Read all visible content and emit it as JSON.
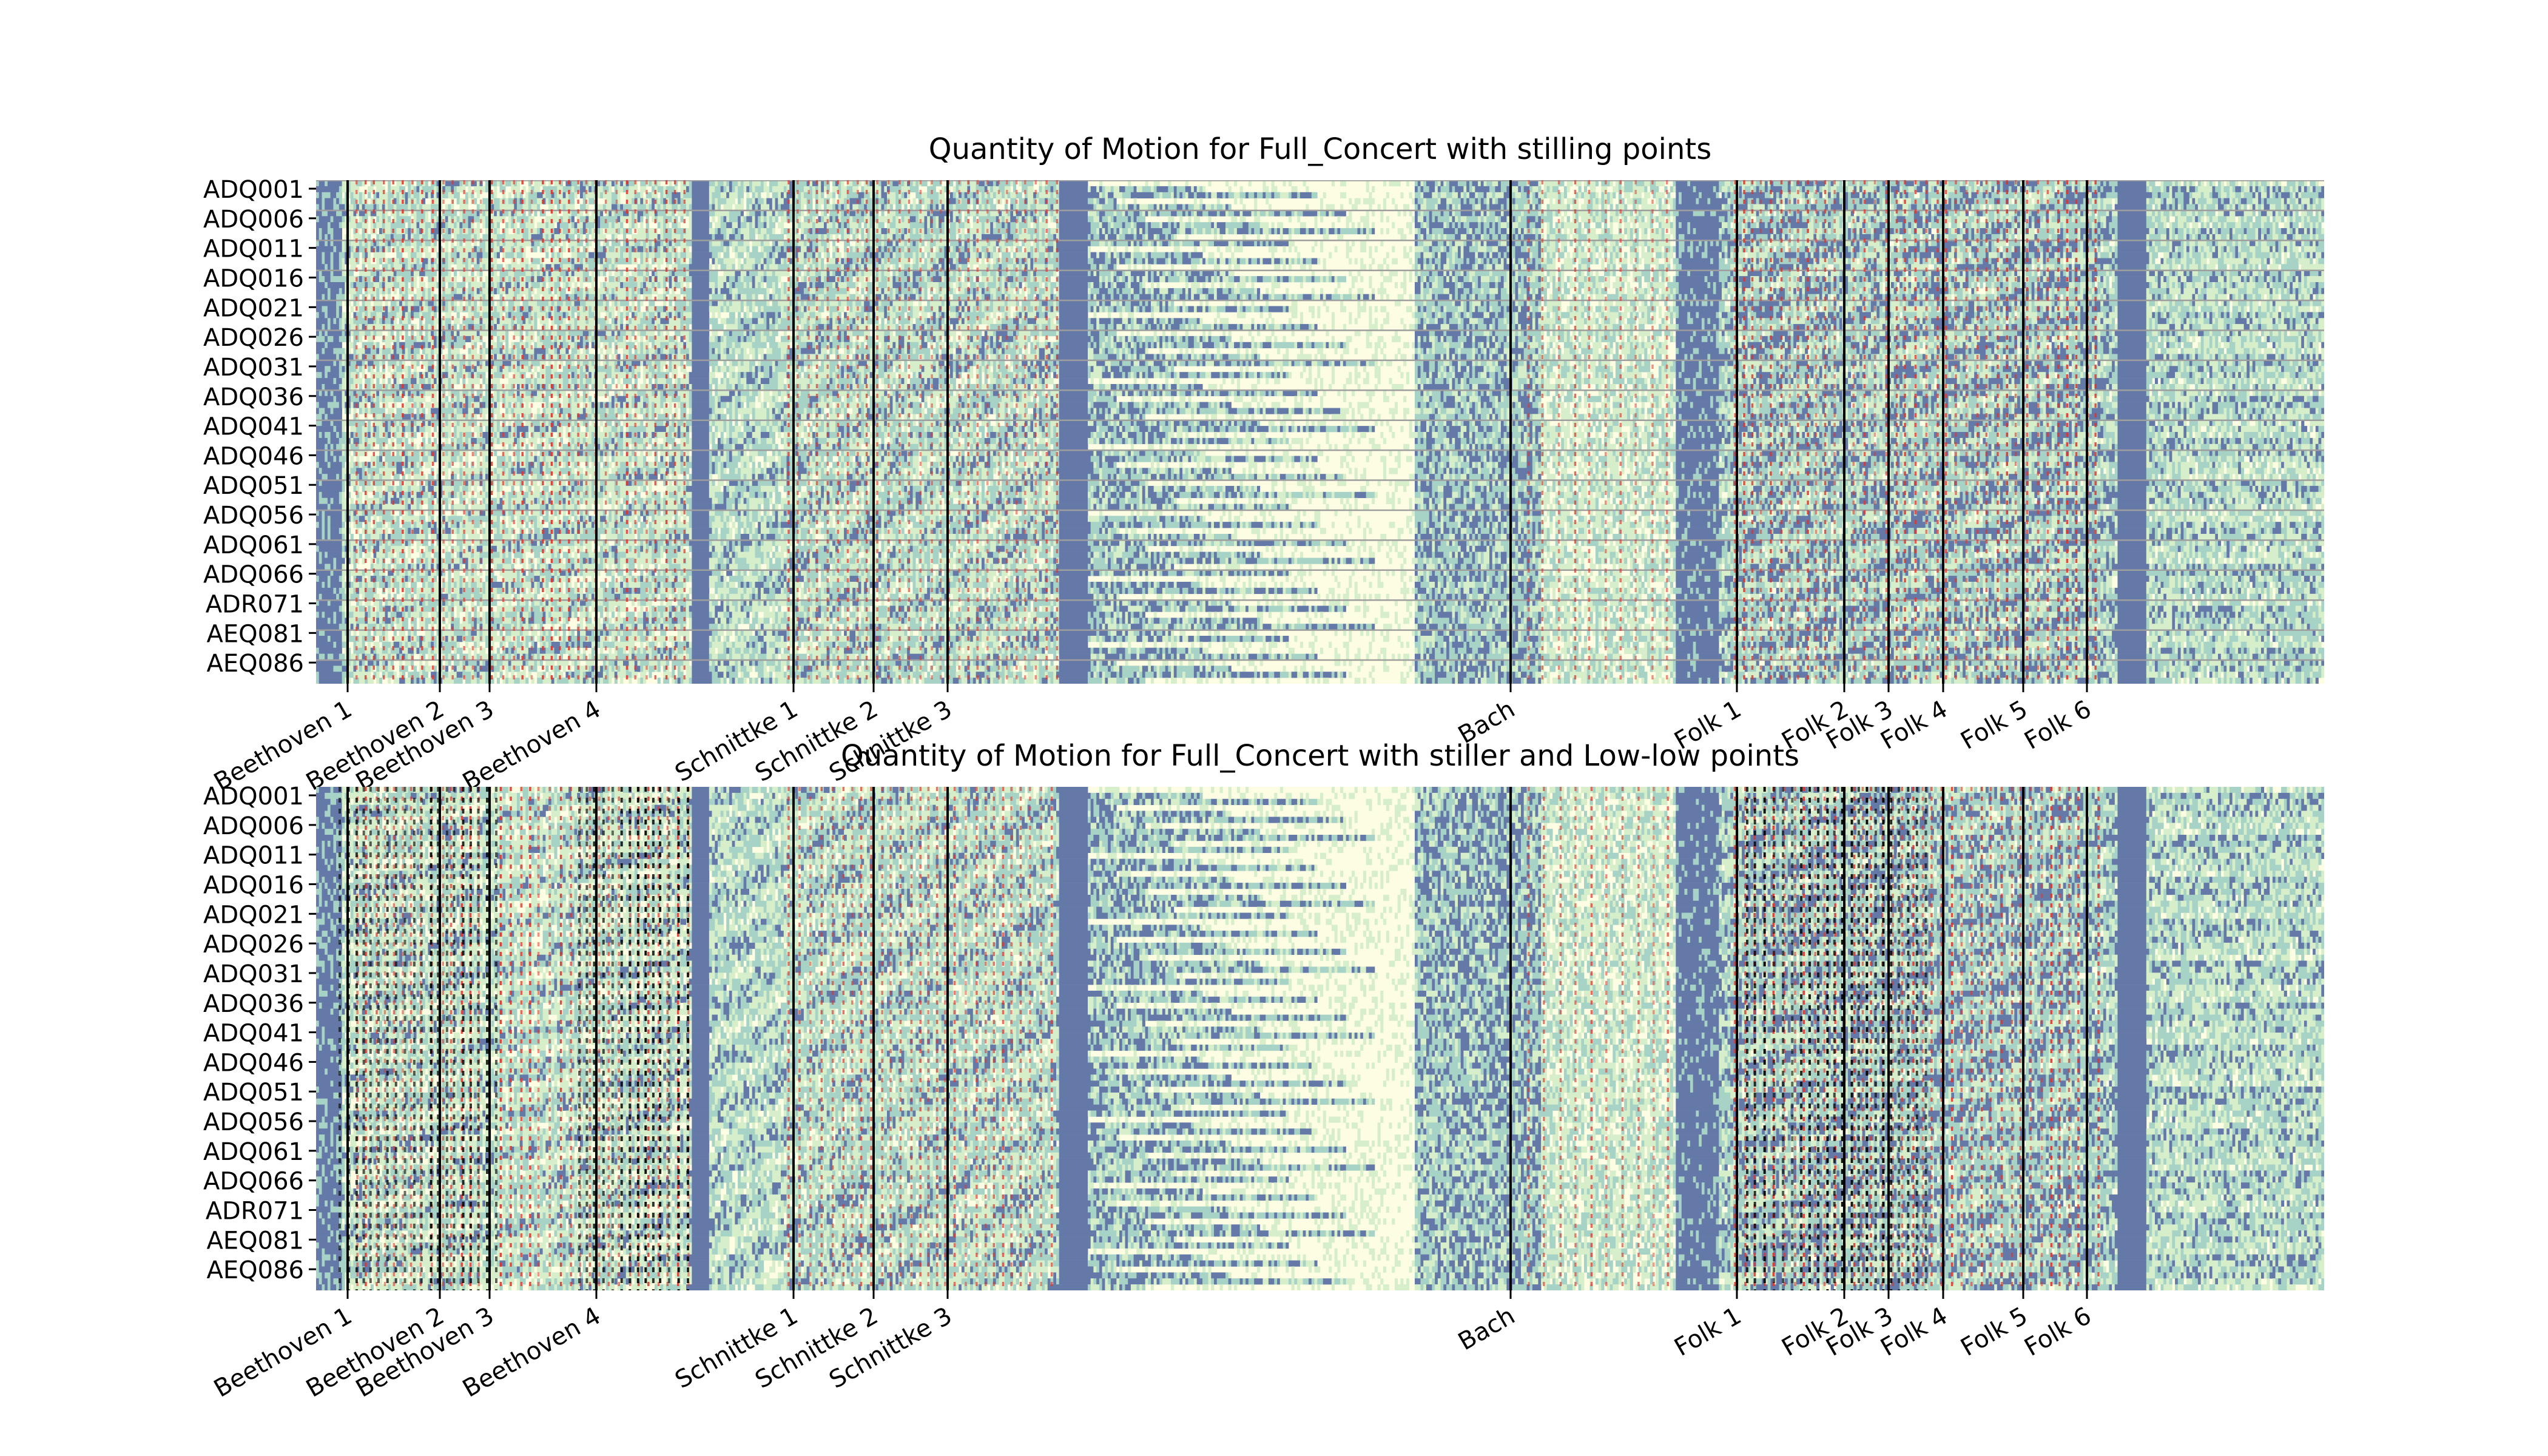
{
  "colors": {
    "background": "#ffffff",
    "heat_low": "#fdfde4",
    "heat_mid_low": "#d6eec9",
    "heat_mid": "#a7d2c6",
    "heat_high": "#6579a8",
    "row_line": "#9e9e9e",
    "section_line": "#000000",
    "stilling_points": "#e1332a",
    "stiller_points": "#e1332a",
    "low_low_points": "#000000"
  },
  "chart_data": [
    {
      "type": "heatmap",
      "title": "Quantity of Motion for Full_Concert with stilling points",
      "ylabel": "",
      "xlabel": "",
      "grid": false,
      "colormap": "YlGnBu",
      "y_tick_labels": [
        "ADQ001",
        "ADQ006",
        "ADQ011",
        "ADQ016",
        "ADQ021",
        "ADQ026",
        "ADQ031",
        "ADQ036",
        "ADQ041",
        "ADQ046",
        "ADQ051",
        "ADQ056",
        "ADQ061",
        "ADQ066",
        "ADR071",
        "AEQ081",
        "AEQ086"
      ],
      "x_tick_labels": [
        "Beethoven 1",
        "Beethoven 2",
        "Beethoven 3",
        "Beethoven 4",
        "Schnittke 1",
        "Schnittke 2",
        "Schnittke 3",
        "Bach",
        "Folk 1",
        "Folk 2",
        "Folk 3",
        "Folk 4",
        "Folk 5",
        "Folk 6"
      ],
      "overlay": [
        "stilling points"
      ]
    },
    {
      "type": "heatmap",
      "title": "Quantity of Motion for Full_Concert with stiller and Low-low points",
      "ylabel": "",
      "xlabel": "",
      "grid": false,
      "colormap": "YlGnBu",
      "y_tick_labels": [
        "ADQ001",
        "ADQ006",
        "ADQ011",
        "ADQ016",
        "ADQ021",
        "ADQ026",
        "ADQ031",
        "ADQ036",
        "ADQ041",
        "ADQ046",
        "ADQ051",
        "ADQ056",
        "ADQ061",
        "ADQ066",
        "ADR071",
        "AEQ081",
        "AEQ086"
      ],
      "x_tick_labels": [
        "Beethoven 1",
        "Beethoven 2",
        "Beethoven 3",
        "Beethoven 4",
        "Schnittke 1",
        "Schnittke 2",
        "Schnittke 3",
        "Bach",
        "Folk 1",
        "Folk 2",
        "Folk 3",
        "Folk 4",
        "Folk 5",
        "Folk 6"
      ],
      "overlay": [
        "stiller points",
        "Low-low points"
      ]
    }
  ]
}
